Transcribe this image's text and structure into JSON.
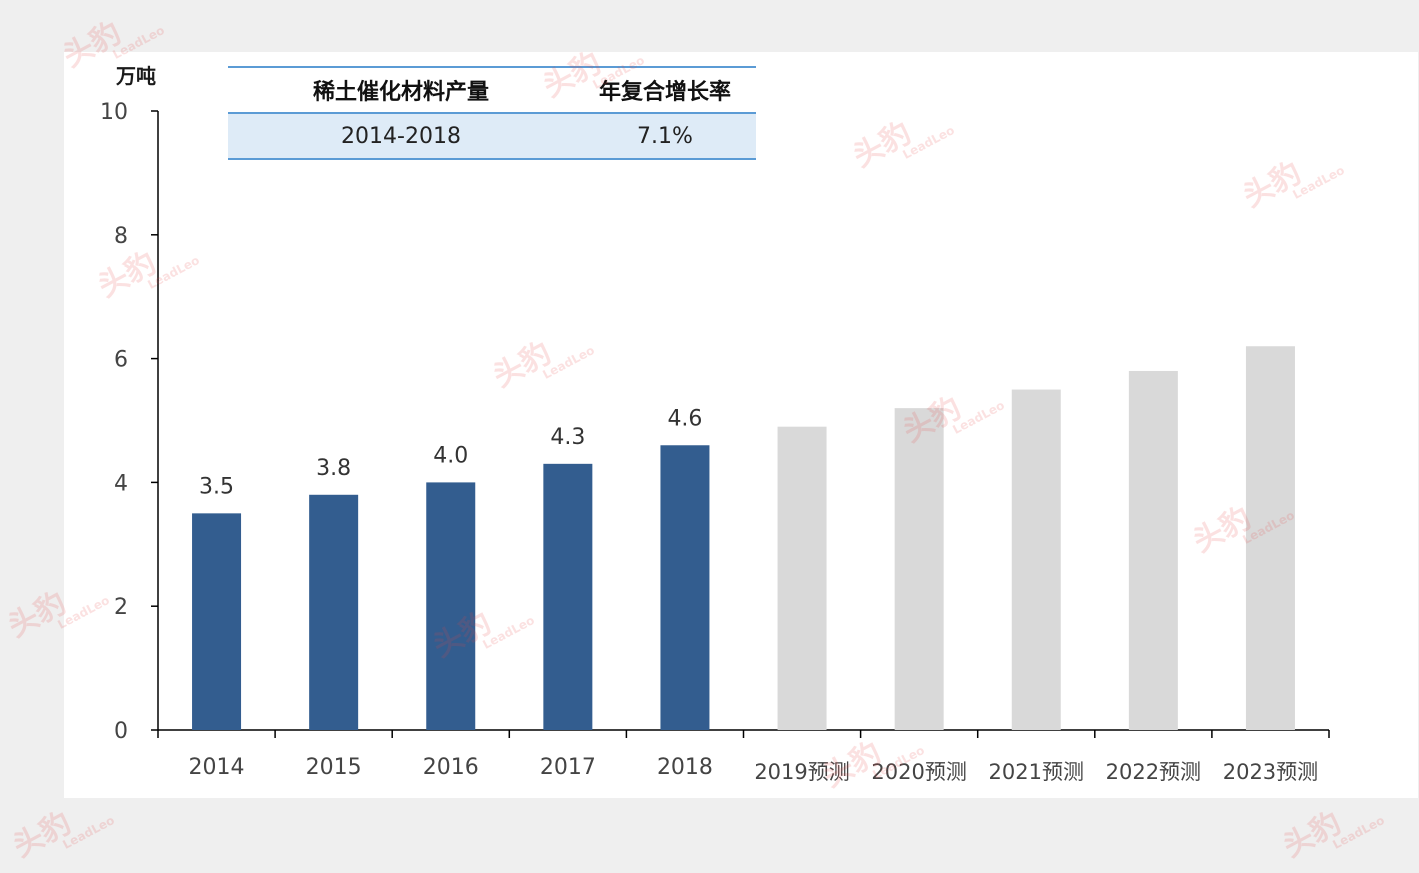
{
  "chart_data": {
    "type": "bar",
    "y_unit": "万吨",
    "ylim": [
      0,
      10
    ],
    "yticks": [
      0,
      2,
      4,
      6,
      8,
      10
    ],
    "grid": false,
    "categories": [
      "2014",
      "2015",
      "2016",
      "2017",
      "2018",
      "2019预测",
      "2020预测",
      "2021预测",
      "2022预测",
      "2023预测"
    ],
    "values": [
      3.5,
      3.8,
      4.0,
      4.3,
      4.6,
      4.9,
      5.2,
      5.5,
      5.8,
      6.2
    ],
    "data_labels": [
      "3.5",
      "3.8",
      "4.0",
      "4.3",
      "4.6",
      "",
      "",
      "",
      "",
      ""
    ],
    "colors": {
      "actual": "#335d8f",
      "forecast": "#d9d9d9",
      "axis": "#000000"
    }
  },
  "cagr_table": {
    "header": [
      "稀土催化材料产量",
      "年复合增长率"
    ],
    "row": [
      "2014-2018",
      "7.1%"
    ]
  },
  "watermark": {
    "glyph": "头豹",
    "sub": "LeadLeo"
  }
}
